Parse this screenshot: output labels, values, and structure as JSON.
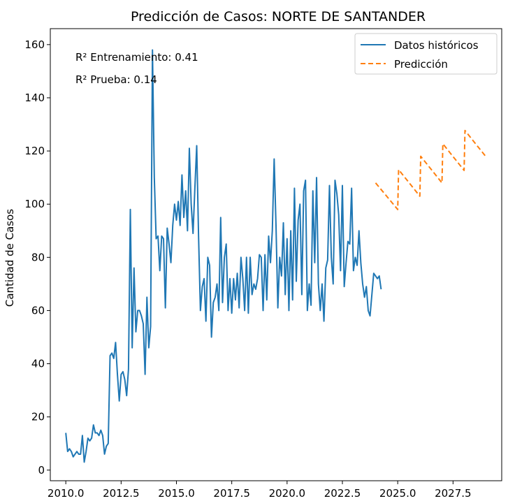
{
  "chart_data": {
    "type": "line",
    "title": "Predicción de Casos: NORTE DE SANTANDER",
    "xlabel": "",
    "ylabel": "Cantidad de Casos",
    "xlim": [
      2009.3,
      2029.7
    ],
    "ylim": [
      -4,
      166
    ],
    "xticks": [
      2010.0,
      2012.5,
      2015.0,
      2017.5,
      2020.0,
      2022.5,
      2025.0,
      2027.5
    ],
    "xtick_labels": [
      "2010.0",
      "2012.5",
      "2015.0",
      "2017.5",
      "2020.0",
      "2022.5",
      "2025.0",
      "2027.5"
    ],
    "yticks": [
      0,
      20,
      40,
      60,
      80,
      100,
      120,
      140,
      160
    ],
    "ytick_labels": [
      "0",
      "20",
      "40",
      "60",
      "80",
      "100",
      "120",
      "140",
      "160"
    ],
    "grid": false,
    "legend_position": "top-right",
    "annotations": [
      "R² Entrenamiento: 0.41",
      "R² Prueba: 0.14"
    ],
    "series": [
      {
        "name": "Datos históricos",
        "color": "#1f77b4",
        "style": "solid",
        "x_start": 2010.0,
        "x_step": 0.08333,
        "values": [
          14,
          7,
          8,
          7,
          5,
          6,
          7,
          6,
          6,
          13,
          3,
          7,
          12,
          11,
          12,
          17,
          14,
          14,
          13,
          15,
          13,
          6,
          9,
          10,
          43,
          44,
          42,
          48,
          36,
          26,
          36,
          37,
          34,
          28,
          38,
          98,
          46,
          76,
          52,
          60,
          60,
          58,
          55,
          36,
          65,
          46,
          54,
          158,
          110,
          87,
          88,
          75,
          88,
          87,
          61,
          91,
          85,
          78,
          92,
          100,
          94,
          101,
          92,
          111,
          95,
          105,
          90,
          121,
          100,
          89,
          106,
          122,
          88,
          60,
          69,
          72,
          56,
          80,
          77,
          50,
          63,
          65,
          70,
          60,
          95,
          63,
          80,
          85,
          60,
          72,
          59,
          72,
          64,
          74,
          61,
          80,
          72,
          60,
          80,
          59,
          80,
          66,
          70,
          68,
          72,
          81,
          80,
          60,
          81,
          64,
          88,
          78,
          90,
          117,
          92,
          61,
          80,
          73,
          93,
          66,
          87,
          60,
          90,
          64,
          106,
          71,
          94,
          100,
          66,
          105,
          109,
          60,
          70,
          62,
          105,
          78,
          110,
          70,
          60,
          70,
          56,
          76,
          79,
          107,
          80,
          70,
          109,
          104,
          96,
          75,
          107,
          69,
          78,
          86,
          85,
          106,
          75,
          80,
          77,
          90,
          78,
          70,
          65,
          69,
          60,
          58,
          66,
          74,
          73,
          72,
          73,
          68
        ]
      },
      {
        "name": "Predicción",
        "color": "#ff7f0e",
        "style": "dashed",
        "x": [
          2024.0,
          2025.0,
          2025.04,
          2026.0,
          2026.04,
          2027.0,
          2027.04,
          2028.0,
          2028.04,
          2029.0
        ],
        "values": [
          108,
          98,
          113,
          103,
          118,
          108,
          122.7,
          112.7,
          127.7,
          117.7
        ]
      }
    ]
  }
}
